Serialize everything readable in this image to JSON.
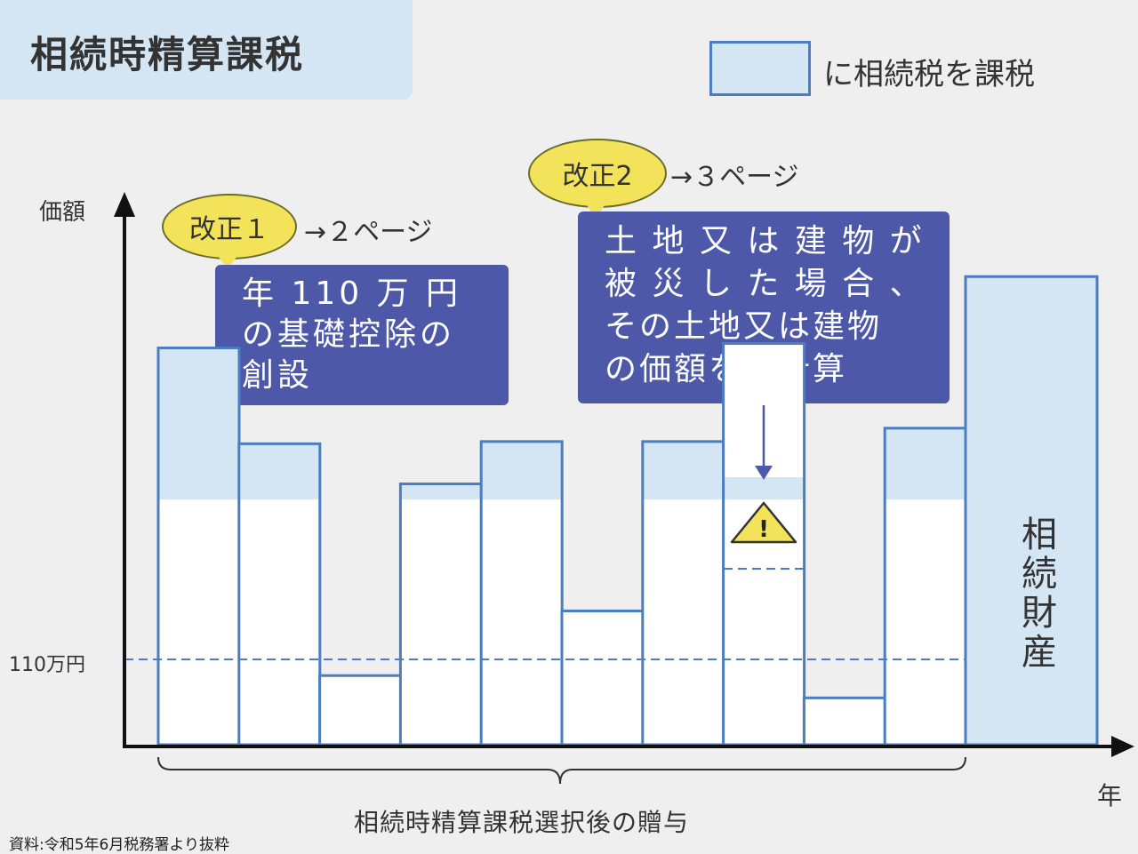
{
  "title": "相続時精算課税",
  "legend": {
    "label": "に相続税を課税",
    "color": "#d4e6f4",
    "border": "#4a7ec0"
  },
  "annotations": [
    {
      "tag": "改正１",
      "page_ref": "→２ページ",
      "text": "年 110 万 円\nの基礎控除の\n創設"
    },
    {
      "tag": "改正2",
      "page_ref": "→３ページ",
      "text": "土 地 又 は 建 物 が\n被 災 し た 場 合 、\nその土地又は建物\nの価額を再計算"
    }
  ],
  "warning_icon": "warning-triangle-icon",
  "chart_data": {
    "type": "bar",
    "ylabel": "価額",
    "xlabel": "年",
    "threshold_label": "110万円",
    "threshold_value": 110,
    "gifts_label": "相続時精算課税選択後の贈与",
    "inheritance_label": "相続財産",
    "gift_values": [
      178,
      135,
      31,
      117,
      136,
      60,
      136,
      180,
      21,
      142
    ],
    "recalculated_index": 7,
    "recalculated_value": 120,
    "inheritance_value": 210,
    "ylim": [
      0,
      240
    ],
    "colors": {
      "taxed": "#d4e6f4",
      "exempt": "#ffffff",
      "border": "#4a7ec0",
      "axis": "#111111"
    }
  },
  "source": "資料:令和5年6月税務署より抜粋"
}
